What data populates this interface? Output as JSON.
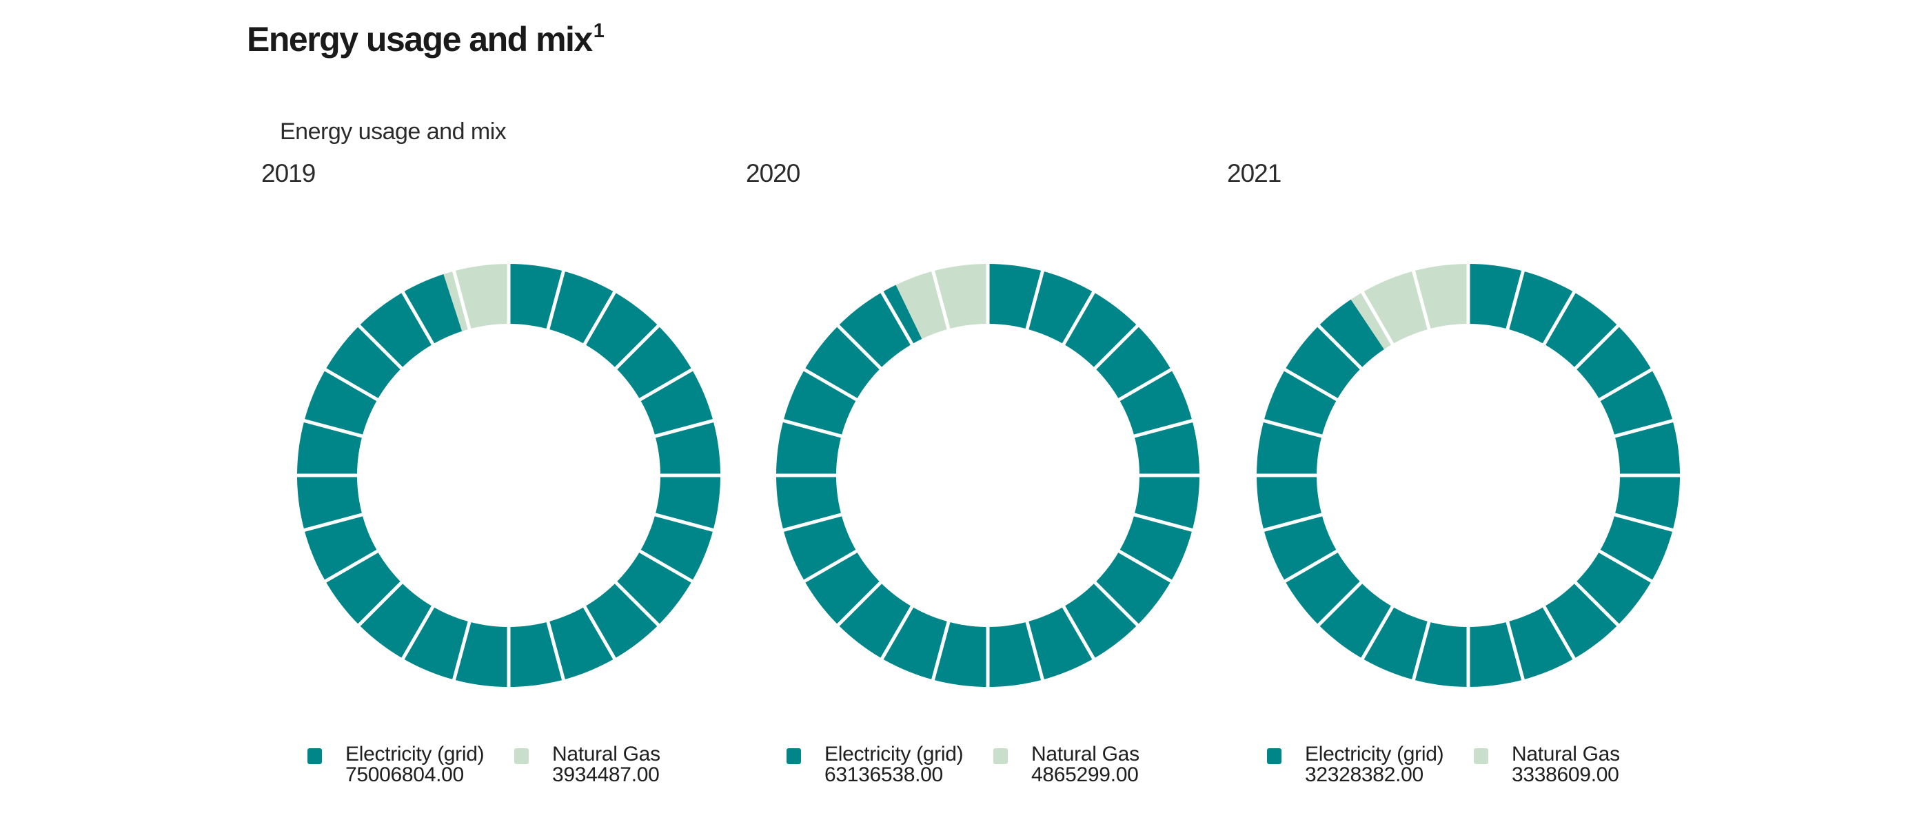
{
  "page": {
    "background": "#FFFFFF"
  },
  "title": {
    "text": "Energy usage and mix",
    "superscript": "1"
  },
  "chart_subtitle": "Energy usage and mix",
  "colors": {
    "electricity": "#008589",
    "natural_gas": "#C9DFCB",
    "divider": "#FFFFFF",
    "title_text": "#1A1A1A",
    "body_text": "#2B2B2B"
  },
  "chart_data": [
    {
      "type": "pie",
      "variant": "segmented-donut",
      "year": "2019",
      "start_angle_degrees": 0,
      "direction": "clockwise",
      "segment_step_degrees": 15,
      "series": [
        {
          "name": "Electricity (grid)",
          "value": 75006804,
          "value_display": "75006804.00",
          "color_key": "electricity"
        },
        {
          "name": "Natural Gas",
          "value": 3934487,
          "value_display": "3934487.00",
          "color_key": "natural_gas"
        }
      ]
    },
    {
      "type": "pie",
      "variant": "segmented-donut",
      "year": "2020",
      "start_angle_degrees": 0,
      "direction": "clockwise",
      "segment_step_degrees": 15,
      "series": [
        {
          "name": "Electricity (grid)",
          "value": 63136538,
          "value_display": "63136538.00",
          "color_key": "electricity"
        },
        {
          "name": "Natural Gas",
          "value": 4865299,
          "value_display": "4865299.00",
          "color_key": "natural_gas"
        }
      ]
    },
    {
      "type": "pie",
      "variant": "segmented-donut",
      "year": "2021",
      "start_angle_degrees": 0,
      "direction": "clockwise",
      "segment_step_degrees": 15,
      "series": [
        {
          "name": "Electricity (grid)",
          "value": 32328382,
          "value_display": "32328382.00",
          "color_key": "electricity"
        },
        {
          "name": "Natural Gas",
          "value": 3338609,
          "value_display": "3338609.00",
          "color_key": "natural_gas"
        }
      ]
    }
  ]
}
